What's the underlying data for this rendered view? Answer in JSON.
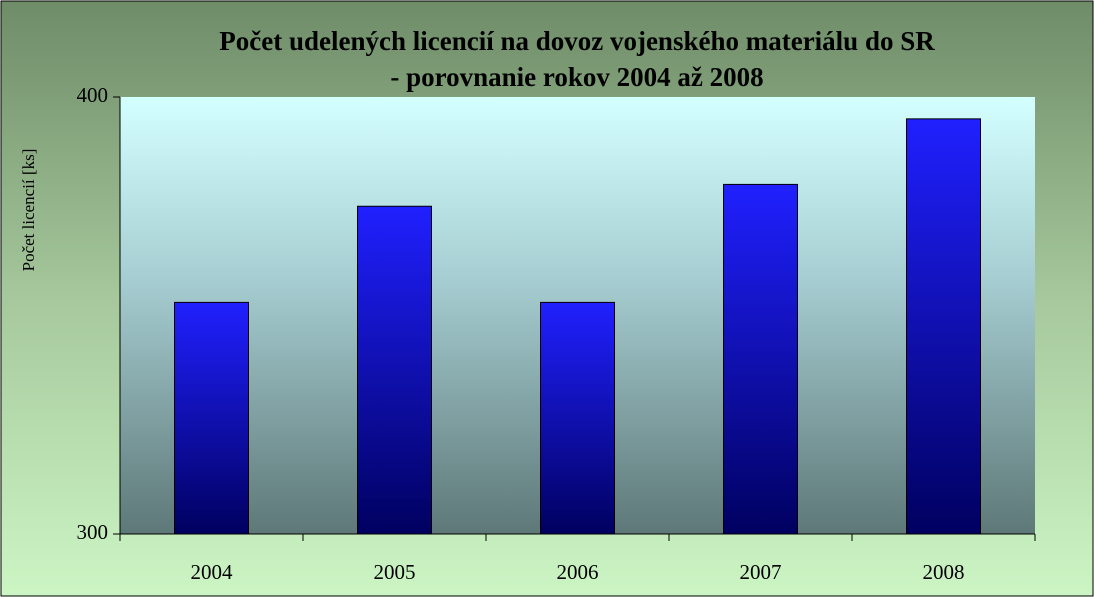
{
  "chart_data": {
    "type": "bar",
    "title": [
      "Počet udelených licencií na dovoz vojenského materiálu do SR",
      "- porovnanie rokov 2004 až 2008"
    ],
    "y_label": "Počet licencií [ks]",
    "categories": [
      "2004",
      "2005",
      "2006",
      "2007",
      "2008"
    ],
    "values": [
      353,
      375,
      353,
      380,
      395
    ],
    "color": "#1a1aff",
    "ylim": [
      300,
      400
    ],
    "yticks": [
      300,
      400
    ],
    "grid": false
  }
}
